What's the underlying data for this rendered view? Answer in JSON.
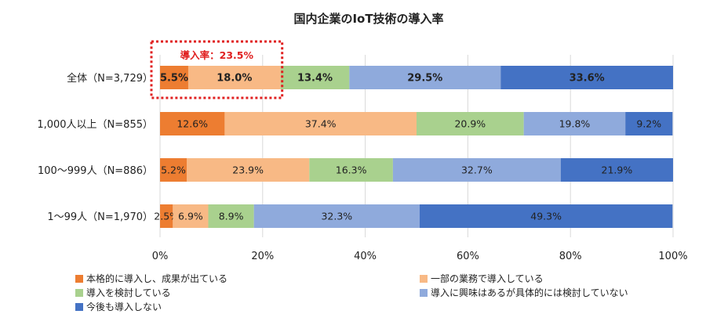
{
  "colors": {
    "series": [
      "#ED7D31",
      "#F8B985",
      "#A9D18E",
      "#8FAADC",
      "#4472C4"
    ],
    "highlight": "#E02020",
    "gridline": "#D9D9D9"
  },
  "chart_data": {
    "type": "bar",
    "orientation": "horizontal",
    "stacked": true,
    "title": "国内企業のIoT技術の導入率",
    "categories": [
      "全体（N=3,729）",
      "1,000人以上（N=855）",
      "100～999人（N=886）",
      "1～99人（N=1,970）"
    ],
    "series": [
      {
        "name": "本格的に導入し、成果が出ている",
        "values": [
          5.5,
          12.6,
          5.2,
          2.5
        ],
        "labels": [
          "5.5%",
          "12.6%",
          "5.2%",
          "2.5%"
        ]
      },
      {
        "name": "一部の業務で導入している",
        "values": [
          18.0,
          37.4,
          23.9,
          6.9
        ],
        "labels": [
          "18.0%",
          "37.4%",
          "23.9%",
          "6.9%"
        ]
      },
      {
        "name": "導入を検討している",
        "values": [
          13.4,
          20.9,
          16.3,
          8.9
        ],
        "labels": [
          "13.4%",
          "20.9%",
          "16.3%",
          "8.9%"
        ]
      },
      {
        "name": "導入に興味はあるが具体的には検討していない",
        "values": [
          29.5,
          19.8,
          32.7,
          32.3
        ],
        "labels": [
          "29.5%",
          "19.8%",
          "32.7%",
          "32.3%"
        ]
      },
      {
        "name": "今後も導入しない",
        "values": [
          33.6,
          9.2,
          21.9,
          49.3
        ],
        "labels": [
          "33.6%",
          "9.2%",
          "21.9%",
          "49.3%"
        ]
      }
    ],
    "xlim": [
      0,
      100
    ],
    "xticks": [
      0,
      20,
      40,
      60,
      80,
      100
    ],
    "xtick_labels": [
      "0%",
      "20%",
      "40%",
      "60%",
      "80%",
      "100%"
    ],
    "bold_label_row": 0,
    "annotation": {
      "text": "導入率：23.5%",
      "row": 0,
      "span": [
        0,
        23.5
      ]
    },
    "legend_position": "bottom"
  }
}
